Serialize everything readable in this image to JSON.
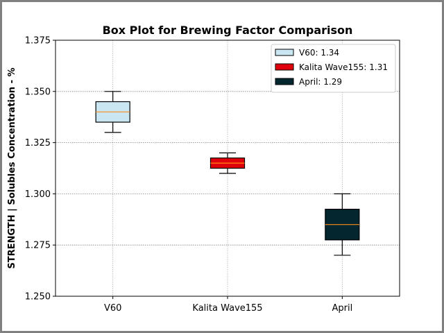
{
  "chart_data": {
    "type": "box",
    "title": "Box Plot for Brewing Factor Comparison",
    "xlabel": "",
    "ylabel": "STRENGTH | Solubles Concentration - %",
    "ylim": [
      1.25,
      1.375
    ],
    "yticks": [
      "1.250",
      "1.275",
      "1.300",
      "1.325",
      "1.350",
      "1.375"
    ],
    "ytick_values": [
      1.25,
      1.275,
      1.3,
      1.325,
      1.35,
      1.375
    ],
    "grid": true,
    "legend_position": "top-right",
    "median_color": "#ff8c1a",
    "categories": [
      "V60",
      "Kalita Wave155",
      "April"
    ],
    "boxes": [
      {
        "category": "V60",
        "min": 1.33,
        "q1": 1.335,
        "median": 1.34,
        "q3": 1.345,
        "max": 1.35,
        "color": "#c9e6f2"
      },
      {
        "category": "Kalita Wave155",
        "min": 1.31,
        "q1": 1.3125,
        "median": 1.315,
        "q3": 1.3175,
        "max": 1.32,
        "color": "#e0000b"
      },
      {
        "category": "April",
        "min": 1.27,
        "q1": 1.2775,
        "median": 1.285,
        "q3": 1.2925,
        "max": 1.3,
        "color": "#04262f"
      }
    ],
    "legend": [
      "V60: 1.34",
      "Kalita Wave155: 1.31",
      "April: 1.29"
    ]
  }
}
